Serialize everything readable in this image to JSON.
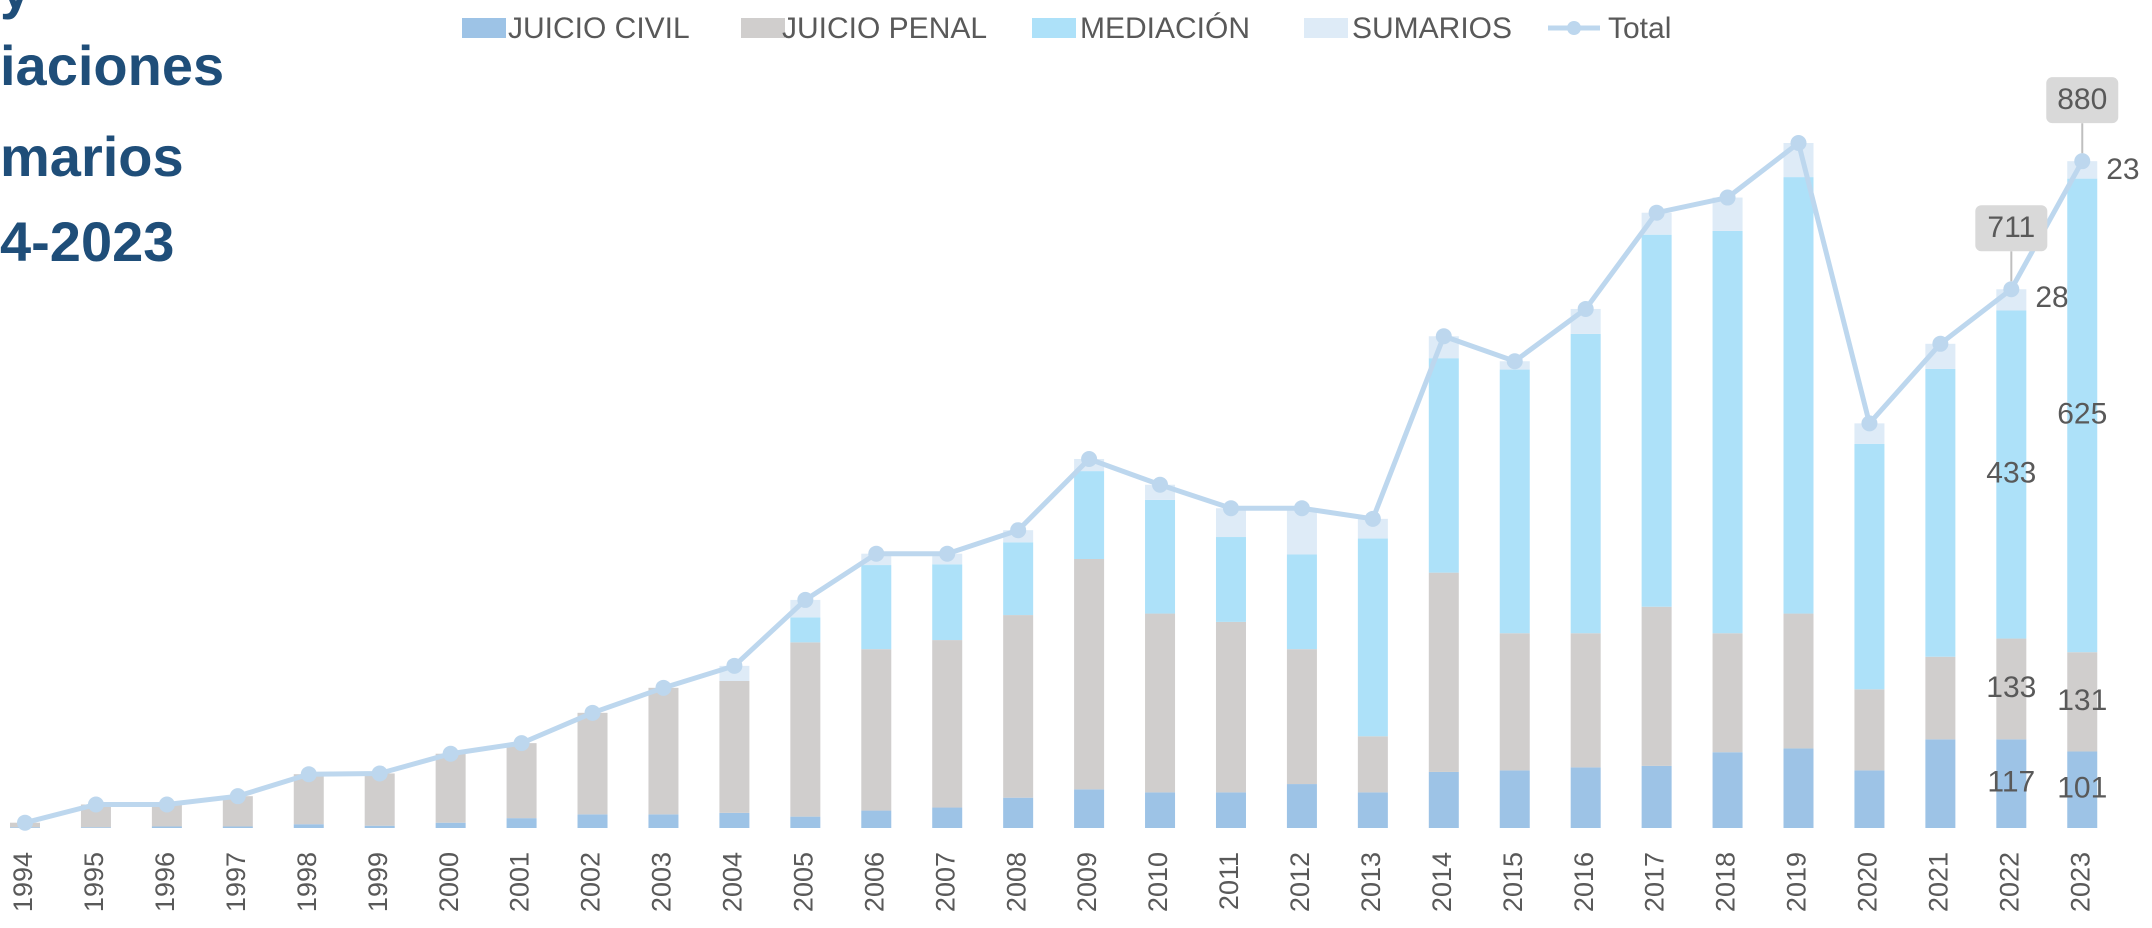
{
  "chart_data": {
    "type": "bar",
    "title_lines": [
      "y",
      "iaciones",
      "marios",
      "4-2023"
    ],
    "categories": [
      "1994",
      "1995",
      "1996",
      "1997",
      "1998",
      "1999",
      "2000",
      "2001",
      "2002",
      "2003",
      "2004",
      "2005",
      "2006",
      "2007",
      "2008",
      "2009",
      "2010",
      "2011",
      "2012",
      "2013",
      "2014",
      "2015",
      "2016",
      "2017",
      "2018",
      "2019",
      "2020",
      "2021",
      "2022",
      "2023"
    ],
    "series": [
      {
        "name": "JUICIO CIVIL",
        "color": "#9dc3e6",
        "values": [
          1,
          1,
          2,
          2,
          5,
          3,
          7,
          13,
          18,
          18,
          20,
          15,
          23,
          27,
          40,
          51,
          47,
          47,
          58,
          47,
          74,
          76,
          80,
          82,
          100,
          105,
          76,
          117,
          117,
          101
        ]
      },
      {
        "name": "JUICIO PENAL",
        "color": "#d0cecd",
        "values": [
          6,
          30,
          29,
          40,
          66,
          69,
          91,
          99,
          134,
          167,
          174,
          230,
          213,
          221,
          241,
          304,
          236,
          225,
          178,
          74,
          263,
          181,
          177,
          210,
          157,
          178,
          107,
          109,
          133,
          131
        ]
      },
      {
        "name": "MEDIACIÓN",
        "color": "#ade1f9",
        "values": [
          0,
          0,
          0,
          0,
          0,
          0,
          0,
          0,
          0,
          0,
          0,
          33,
          111,
          100,
          96,
          116,
          150,
          112,
          125,
          261,
          283,
          348,
          395,
          491,
          531,
          576,
          324,
          380,
          433,
          625
        ]
      },
      {
        "name": "SUMARIOS",
        "color": "#deebf7",
        "values": [
          0,
          0,
          0,
          0,
          0,
          0,
          0,
          0,
          0,
          0,
          20,
          23,
          15,
          14,
          16,
          16,
          20,
          38,
          61,
          26,
          29,
          11,
          33,
          29,
          44,
          45,
          27,
          33,
          28,
          23
        ]
      },
      {
        "name": "Total",
        "type": "line",
        "color": "#bdd7ee",
        "values": [
          7,
          31,
          31,
          42,
          71,
          72,
          98,
          112,
          152,
          185,
          214,
          301,
          362,
          362,
          393,
          487,
          453,
          422,
          422,
          408,
          649,
          616,
          685,
          812,
          832,
          904,
          534,
          639,
          711,
          880
        ]
      }
    ]
  }
}
